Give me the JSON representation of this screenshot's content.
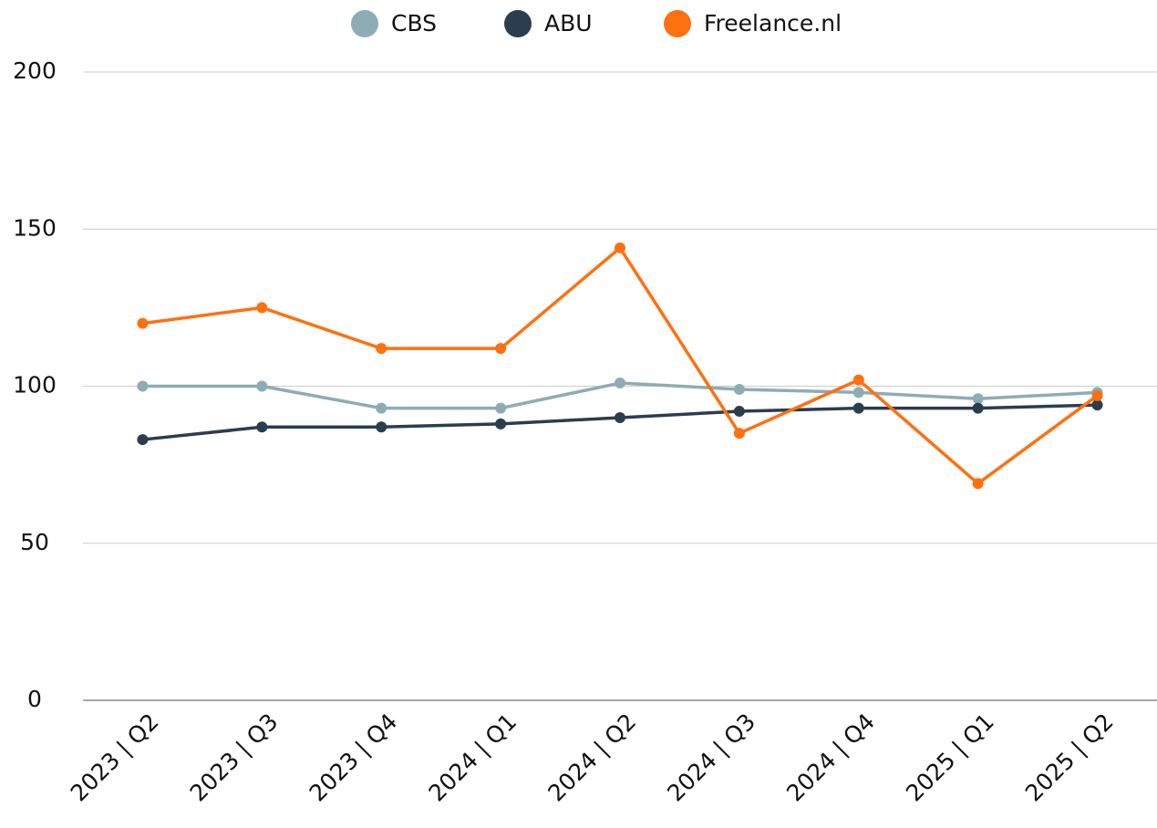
{
  "chart_data": {
    "type": "line",
    "categories": [
      "2023 | Q2",
      "2023 | Q3",
      "2023 | Q4",
      "2024 | Q1",
      "2024 | Q2",
      "2024 | Q3",
      "2024 | Q4",
      "2025 | Q1",
      "2025 | Q2"
    ],
    "series": [
      {
        "name": "CBS",
        "color": "#8eacb5",
        "values": [
          100,
          100,
          93,
          93,
          101,
          99,
          98,
          96,
          98
        ]
      },
      {
        "name": "ABU",
        "color": "#2b3d4f",
        "values": [
          83,
          87,
          87,
          88,
          90,
          92,
          93,
          93,
          94
        ]
      },
      {
        "name": "Freelance.nl",
        "color": "#ff7010",
        "values": [
          120,
          125,
          112,
          112,
          144,
          85,
          102,
          69,
          97
        ]
      }
    ],
    "ylim": [
      0,
      200
    ],
    "yticks": [
      0,
      50,
      100,
      150,
      200
    ],
    "grid": true,
    "legend": "top"
  }
}
